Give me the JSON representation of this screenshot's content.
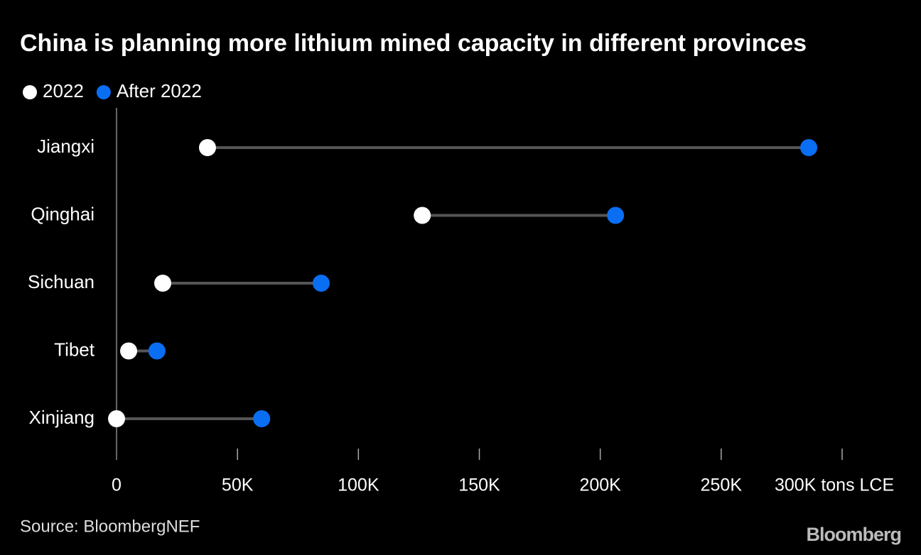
{
  "chart_data": {
    "type": "dumbbell",
    "title": "China is planning more lithium mined capacity in different provinces",
    "categories": [
      "Jiangxi",
      "Qinghai",
      "Sichuan",
      "Tibet",
      "Xinjiang"
    ],
    "series": [
      {
        "name": "2022",
        "color": "#ffffff",
        "values": [
          37600,
          126400,
          19100,
          5000,
          0
        ]
      },
      {
        "name": "After 2022",
        "color": "#0a6ef2",
        "values": [
          286200,
          206300,
          84600,
          16700,
          60000
        ]
      }
    ],
    "xlim": [
      0,
      300000
    ],
    "xticks": [
      0,
      {
        "value": 50000,
        "label": "50K"
      },
      {
        "value": 100000,
        "label": "100K"
      },
      {
        "value": 150000,
        "label": "150K"
      },
      {
        "value": 200000,
        "label": "200K"
      },
      {
        "value": 250000,
        "label": "250K"
      },
      {
        "value": 300000,
        "label": "300K tons LCE"
      }
    ],
    "source": "Source: BloombergNEF",
    "logo": "Bloomberg"
  }
}
